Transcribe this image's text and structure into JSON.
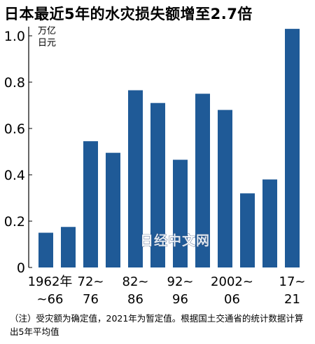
{
  "title": "日本最近5年的水灾损失额增至2.7倍",
  "note": "（注）受灾额为确定值，2021年为暂定值。根据国土交通省的统计数据计算出5年平均值",
  "watermark": "日经中文网",
  "colors": {
    "bar": "#1f5a97",
    "axis": "#000000"
  },
  "chart_data": {
    "type": "bar",
    "unit_label": [
      "万亿",
      "日元"
    ],
    "xlabel": "",
    "ylabel": "",
    "ylim": [
      0,
      1.0
    ],
    "yticks": [
      0,
      0.2,
      0.4,
      0.6,
      0.8,
      1.0
    ],
    "ytick_labels": [
      "0",
      "0.2",
      "0.4",
      "0.6",
      "0.8",
      "1.0"
    ],
    "values": [
      0.15,
      0.175,
      0.545,
      0.495,
      0.765,
      0.71,
      0.465,
      0.75,
      0.68,
      0.32,
      0.38,
      1.03
    ],
    "category_labels": [
      {
        "index": 0,
        "line1": "1962年",
        "line2": "~66"
      },
      {
        "index": 2,
        "line1": "72~",
        "line2": "76"
      },
      {
        "index": 4,
        "line1": "82~",
        "line2": "86"
      },
      {
        "index": 6,
        "line1": "92~",
        "line2": "96"
      },
      {
        "index": 8,
        "line1": "2002~",
        "line2": "06"
      },
      {
        "index": 11,
        "line1": "17~",
        "line2": "21"
      }
    ]
  }
}
